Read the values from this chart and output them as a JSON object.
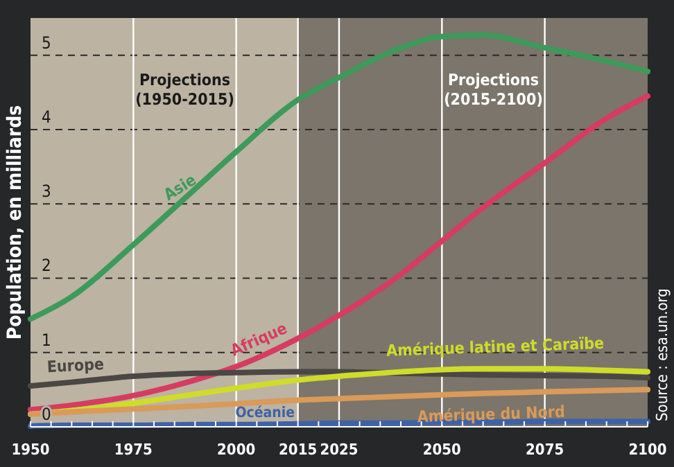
{
  "chart_data": {
    "type": "line",
    "ylabel": "Population, en milliards",
    "x": [
      1950,
      1960,
      1975,
      1990,
      2000,
      2015,
      2025,
      2040,
      2050,
      2060,
      2075,
      2090,
      2100
    ],
    "series": [
      {
        "name": "Asie",
        "color": "#3d9a5a",
        "values": [
          1.45,
          1.75,
          2.45,
          3.2,
          3.7,
          4.4,
          4.7,
          5.1,
          5.25,
          5.27,
          5.1,
          4.92,
          4.78
        ]
      },
      {
        "name": "Afrique",
        "color": "#d63c62",
        "values": [
          0.23,
          0.29,
          0.42,
          0.63,
          0.81,
          1.19,
          1.5,
          2.05,
          2.5,
          2.95,
          3.55,
          4.15,
          4.45
        ]
      },
      {
        "name": "Europe",
        "color": "#4a4744",
        "values": [
          0.55,
          0.6,
          0.68,
          0.72,
          0.73,
          0.74,
          0.74,
          0.72,
          0.71,
          0.7,
          0.69,
          0.68,
          0.66
        ]
      },
      {
        "name": "Amérique latine et Caraïbe",
        "color": "#cfdc2a",
        "values": [
          0.17,
          0.22,
          0.32,
          0.44,
          0.52,
          0.63,
          0.68,
          0.74,
          0.77,
          0.78,
          0.78,
          0.76,
          0.74
        ]
      },
      {
        "name": "Amérique du Nord",
        "color": "#d99a5a",
        "values": [
          0.17,
          0.2,
          0.24,
          0.28,
          0.31,
          0.36,
          0.38,
          0.41,
          0.43,
          0.45,
          0.47,
          0.49,
          0.5
        ]
      },
      {
        "name": "Océanie",
        "color": "#3d62a8",
        "values": [
          0.01,
          0.02,
          0.02,
          0.03,
          0.03,
          0.04,
          0.05,
          0.05,
          0.06,
          0.06,
          0.07,
          0.07,
          0.07
        ]
      }
    ],
    "xlim": [
      1950,
      2100
    ],
    "xticks": [
      1950,
      {
        "value": 1955,
        "label": null
      },
      {
        "value": 1960,
        "label": null
      },
      {
        "value": 1965,
        "label": null
      },
      {
        "value": 1970,
        "label": null
      },
      1975,
      {
        "value": 1980,
        "label": null
      },
      {
        "value": 1985,
        "label": null
      },
      {
        "value": 1990,
        "label": null
      },
      {
        "value": 1995,
        "label": null
      },
      2000,
      {
        "value": 2005,
        "label": null
      },
      {
        "value": 2010,
        "label": null
      },
      2015,
      {
        "value": 2020,
        "label": null
      },
      2025,
      {
        "value": 2030,
        "label": null
      },
      {
        "value": 2035,
        "label": null
      },
      {
        "value": 2040,
        "label": null
      },
      {
        "value": 2045,
        "label": null
      },
      2050,
      {
        "value": 2055,
        "label": null
      },
      {
        "value": 2060,
        "label": null
      },
      {
        "value": 2065,
        "label": null
      },
      {
        "value": 2070,
        "label": null
      },
      2075,
      {
        "value": 2080,
        "label": null
      },
      {
        "value": 2085,
        "label": null
      },
      {
        "value": 2090,
        "label": null
      },
      {
        "value": 2095,
        "label": null
      },
      2100
    ],
    "ylim": [
      0,
      5.5
    ],
    "yticks": [
      0,
      1,
      2,
      3,
      4,
      5
    ],
    "grid": true,
    "legend": false,
    "bands": [
      {
        "axis": "x",
        "from": 1950,
        "to": 2015,
        "label": "Projections\n(1950-2015)",
        "color": "#bcb3a3"
      },
      {
        "axis": "x",
        "from": 2015,
        "to": 2100,
        "label": "Projections\n(2015-2100)",
        "color": "#7b756b"
      }
    ],
    "annotations": [
      "Source : esa.un.org"
    ]
  }
}
